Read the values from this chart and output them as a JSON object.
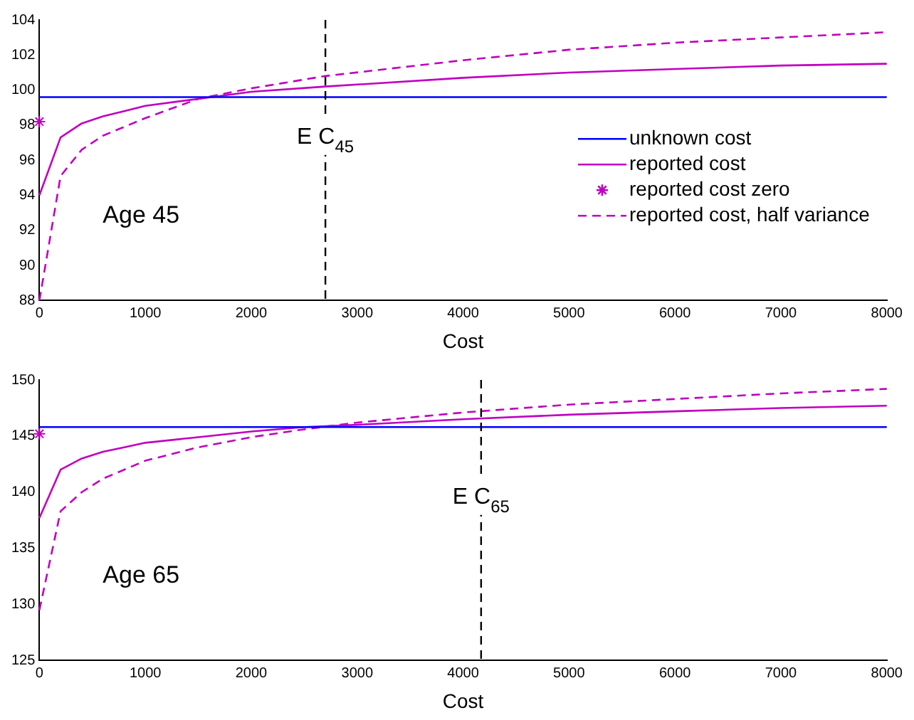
{
  "chart_data": [
    {
      "type": "line",
      "xlabel": "Cost",
      "xlim": [
        0,
        8000
      ],
      "xticks": [
        0,
        1000,
        2000,
        3000,
        4000,
        5000,
        6000,
        7000,
        8000
      ],
      "ylim": [
        88,
        104
      ],
      "yticks": [
        88,
        90,
        92,
        94,
        96,
        98,
        100,
        102,
        104
      ],
      "grid": false,
      "legend": "right",
      "marker": "none",
      "series": [
        {
          "name": "unknown cost",
          "color": "#0000ff",
          "line_style": "solid",
          "x": [
            0,
            8000
          ],
          "values": [
            99.6,
            99.6
          ]
        },
        {
          "name": "reported cost",
          "color": "#c000c0",
          "line_style": "solid",
          "x": [
            0,
            200,
            400,
            600,
            800,
            1000,
            1500,
            2000,
            2700,
            4000,
            5000,
            6000,
            7000,
            8000
          ],
          "values": [
            94,
            97.3,
            98.1,
            98.5,
            98.8,
            99.1,
            99.5,
            99.9,
            100.2,
            100.7,
            101,
            101.2,
            101.4,
            101.5
          ]
        },
        {
          "name": "reported cost zero",
          "type": "scatter",
          "marker": "cross",
          "color": "#c000c0",
          "x": [
            0
          ],
          "values": [
            98.2
          ]
        },
        {
          "name": "reported cost, half variance",
          "color": "#c000c0",
          "line_style": "dashed",
          "x": [
            0,
            200,
            400,
            600,
            800,
            1000,
            1500,
            2000,
            2700,
            4000,
            5000,
            6000,
            7000,
            8000
          ],
          "values": [
            88,
            95.1,
            96.6,
            97.4,
            97.9,
            98.4,
            99.5,
            100.1,
            100.8,
            101.7,
            102.3,
            102.7,
            103.0,
            103.3
          ]
        }
      ],
      "ref_lines": [
        {
          "axis": "x",
          "value": 2700,
          "label": "E C$_{45}$",
          "color": "#000000",
          "line_style": "dashed"
        }
      ],
      "annotations": [
        "Age 45"
      ]
    },
    {
      "type": "line",
      "xlabel": "Cost",
      "xlim": [
        0,
        8000
      ],
      "xticks": [
        0,
        1000,
        2000,
        3000,
        4000,
        5000,
        6000,
        7000,
        8000
      ],
      "ylim": [
        125,
        150
      ],
      "yticks": [
        125,
        130,
        135,
        140,
        145,
        150
      ],
      "grid": false,
      "marker": "none",
      "series": [
        {
          "color": "#0000ff",
          "line_style": "solid",
          "x": [
            0,
            8000
          ],
          "values": [
            145.8,
            145.8
          ]
        },
        {
          "color": "#c000c0",
          "line_style": "solid",
          "x": [
            0,
            200,
            400,
            600,
            800,
            1000,
            1500,
            2000,
            2500,
            3000,
            4000,
            5000,
            6000,
            7000,
            8000
          ],
          "values": [
            137.7,
            142,
            143,
            143.6,
            144,
            144.4,
            144.9,
            145.4,
            145.8,
            146,
            146.5,
            146.9,
            147.2,
            147.5,
            147.7
          ]
        },
        {
          "type": "scatter",
          "marker": "cross",
          "color": "#c000c0",
          "x": [
            0
          ],
          "values": [
            145.2
          ]
        },
        {
          "color": "#c000c0",
          "line_style": "dashed",
          "x": [
            0,
            200,
            400,
            600,
            800,
            1000,
            1500,
            2000,
            2500,
            3000,
            4000,
            5000,
            6000,
            7000,
            8000
          ],
          "values": [
            129.5,
            138.3,
            140,
            141.2,
            142,
            142.8,
            144,
            144.9,
            145.6,
            146.2,
            147.1,
            147.8,
            148.3,
            148.8,
            149.2
          ]
        }
      ],
      "ref_lines": [
        {
          "axis": "x",
          "value": 4170,
          "label": "E C$_{65}$",
          "color": "#000000",
          "line_style": "dashed"
        }
      ],
      "annotations": [
        "Age 65"
      ]
    }
  ]
}
